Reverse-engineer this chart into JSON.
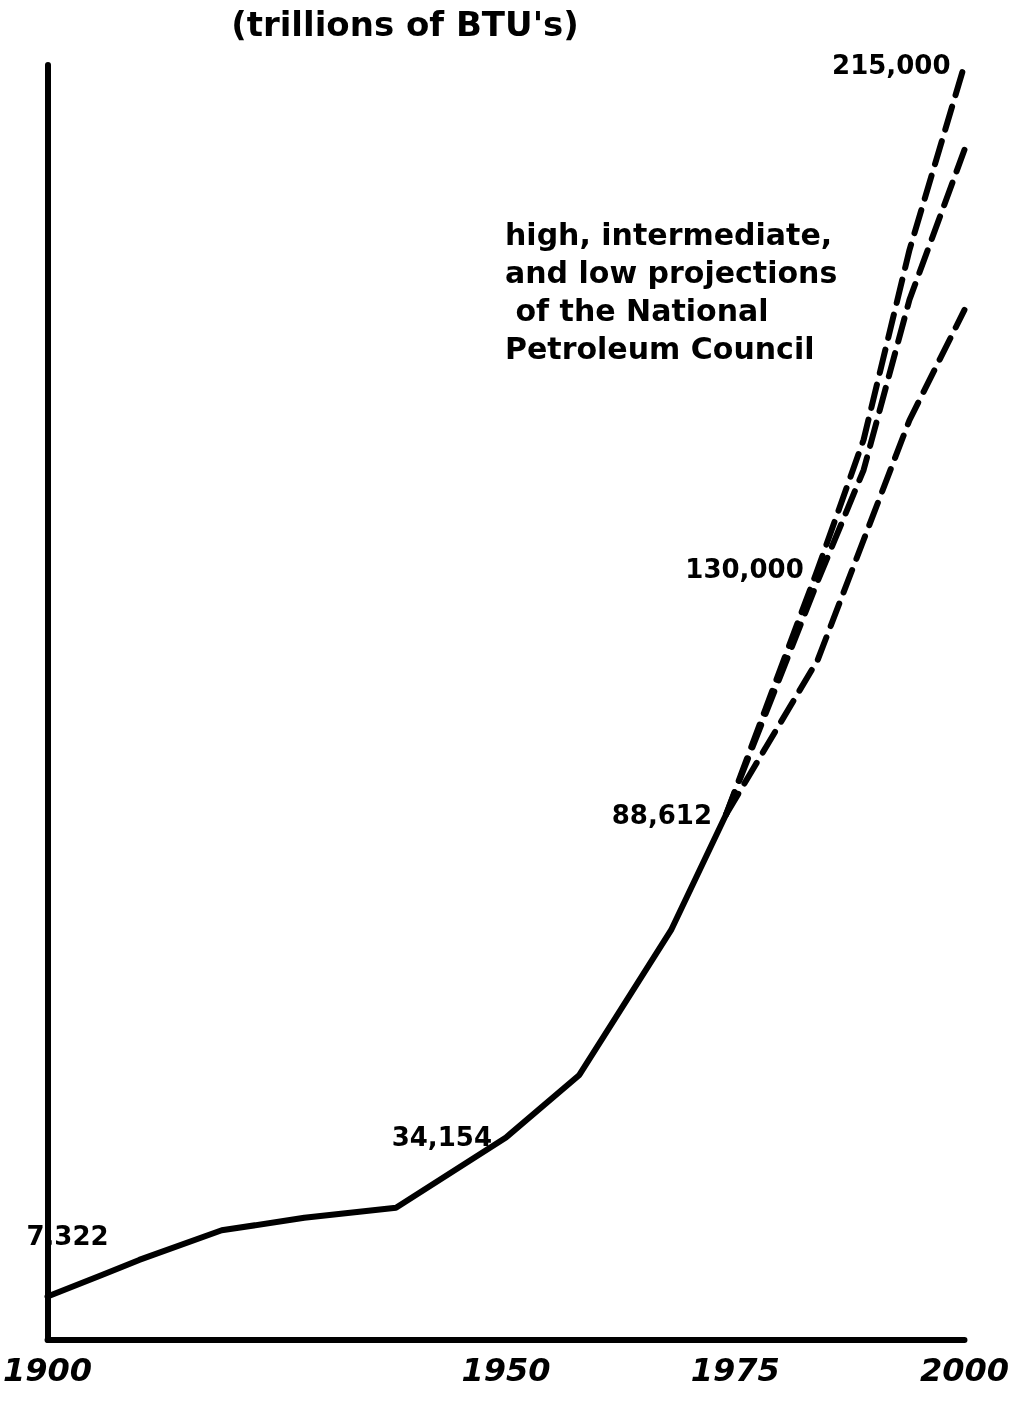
{
  "chart_data": {
    "type": "line",
    "title": "(trillions of BTU's)",
    "xlim": [
      1900,
      2000
    ],
    "xticks": [
      1900,
      1950,
      1975,
      2000
    ],
    "ylim": [
      0,
      215000
    ],
    "tick_labels": "x",
    "grid": false,
    "marker": "none",
    "annotations": [
      "high, intermediate, and low projections of the National Petroleum Council"
    ],
    "series": [
      {
        "color": "#000000",
        "line_style": "solid",
        "x": [
          1900,
          1906,
          1910,
          1919,
          1928,
          1938,
          1950,
          1958,
          1968,
          1974
        ],
        "values": [
          7322,
          11000,
          13500,
          18500,
          20600,
          22300,
          34154,
          44700,
          69100,
          88612
        ],
        "value_labels": [
          "7,322",
          null,
          null,
          null,
          null,
          null,
          "34,154",
          null,
          null,
          "88,612"
        ]
      },
      {
        "color": "#000000",
        "line_style": "dashed",
        "x": [
          1974,
          1984,
          1989,
          1994,
          2000
        ],
        "values": [
          88612,
          130000,
          151800,
          183800,
          215000
        ],
        "value_labels": [
          null,
          "130,000",
          null,
          null,
          "215,000"
        ]
      },
      {
        "color": "#000000",
        "line_style": "dashed",
        "x": [
          1974,
          1984,
          1989,
          1994,
          2000
        ],
        "values": [
          88612,
          128000,
          146700,
          175400,
          200700
        ]
      },
      {
        "color": "#000000",
        "line_style": "dashed",
        "x": [
          1974,
          1984,
          1989,
          1994,
          2000
        ],
        "values": [
          88612,
          114700,
          134900,
          155100,
          173700
        ]
      }
    ]
  }
}
